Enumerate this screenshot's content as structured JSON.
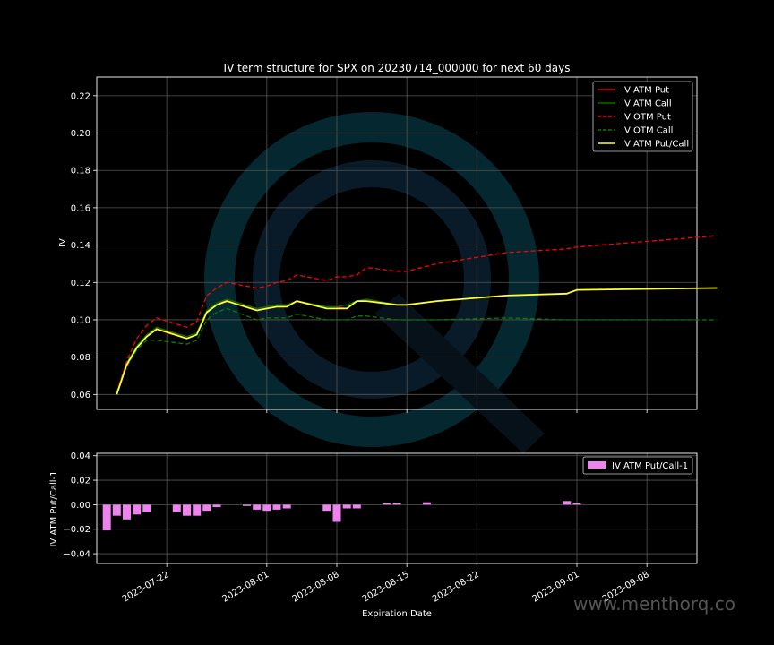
{
  "chart_data": [
    {
      "type": "line",
      "title": "IV term structure for SPX on 20230714_000000 for next 60 days",
      "xlabel": "",
      "ylabel": "IV",
      "ylim": [
        0.052,
        0.23
      ],
      "yticks": [
        0.06,
        0.08,
        0.1,
        0.12,
        0.14,
        0.16,
        0.18,
        0.2,
        0.22
      ],
      "x_range": [
        "2023-07-15",
        "2023-09-13"
      ],
      "grid": true,
      "legend_position": "top-right",
      "series": [
        {
          "name": "IV ATM Put",
          "color": "#e00000",
          "style": "solid",
          "points": [
            [
              "2023-07-17",
              0.061
            ],
            [
              "2023-07-18",
              0.076
            ],
            [
              "2023-07-19",
              0.085
            ],
            [
              "2023-07-20",
              0.091
            ],
            [
              "2023-07-21",
              0.096
            ],
            [
              "2023-07-24",
              0.09
            ],
            [
              "2023-07-25",
              0.092
            ],
            [
              "2023-07-26",
              0.104
            ],
            [
              "2023-07-27",
              0.108
            ],
            [
              "2023-07-28",
              0.111
            ],
            [
              "2023-07-31",
              0.106
            ],
            [
              "2023-08-01",
              0.107
            ],
            [
              "2023-08-02",
              0.108
            ],
            [
              "2023-08-03",
              0.108
            ],
            [
              "2023-08-04",
              0.11
            ],
            [
              "2023-08-07",
              0.107
            ],
            [
              "2023-08-08",
              0.107
            ],
            [
              "2023-08-09",
              0.106
            ],
            [
              "2023-08-10",
              0.11
            ],
            [
              "2023-08-11",
              0.111
            ],
            [
              "2023-08-14",
              0.108
            ],
            [
              "2023-08-15",
              0.108
            ],
            [
              "2023-08-18",
              0.11
            ],
            [
              "2023-08-25",
              0.113
            ],
            [
              "2023-08-31",
              0.114
            ],
            [
              "2023-09-01",
              0.116
            ],
            [
              "2023-09-15",
              0.117
            ]
          ]
        },
        {
          "name": "IV ATM Call",
          "color": "#007000",
          "style": "solid",
          "points": [
            [
              "2023-07-17",
              0.061
            ],
            [
              "2023-07-18",
              0.077
            ],
            [
              "2023-07-19",
              0.086
            ],
            [
              "2023-07-20",
              0.092
            ],
            [
              "2023-07-21",
              0.096
            ],
            [
              "2023-07-24",
              0.091
            ],
            [
              "2023-07-25",
              0.093
            ],
            [
              "2023-07-26",
              0.105
            ],
            [
              "2023-07-27",
              0.109
            ],
            [
              "2023-07-28",
              0.111
            ],
            [
              "2023-07-31",
              0.106
            ],
            [
              "2023-08-01",
              0.107
            ],
            [
              "2023-08-02",
              0.108
            ],
            [
              "2023-08-03",
              0.108
            ],
            [
              "2023-08-04",
              0.11
            ],
            [
              "2023-08-07",
              0.107
            ],
            [
              "2023-08-08",
              0.107
            ],
            [
              "2023-08-09",
              0.108
            ],
            [
              "2023-08-10",
              0.11
            ],
            [
              "2023-08-11",
              0.111
            ],
            [
              "2023-08-14",
              0.108
            ],
            [
              "2023-08-15",
              0.108
            ],
            [
              "2023-08-18",
              0.11
            ],
            [
              "2023-08-25",
              0.113
            ],
            [
              "2023-08-31",
              0.114
            ],
            [
              "2023-09-01",
              0.116
            ],
            [
              "2023-09-15",
              0.117
            ]
          ]
        },
        {
          "name": "IV OTM Put",
          "color": "#ff0000",
          "style": "dashed",
          "points": [
            [
              "2023-07-17",
              0.061
            ],
            [
              "2023-07-18",
              0.078
            ],
            [
              "2023-07-19",
              0.09
            ],
            [
              "2023-07-20",
              0.097
            ],
            [
              "2023-07-21",
              0.101
            ],
            [
              "2023-07-24",
              0.096
            ],
            [
              "2023-07-25",
              0.099
            ],
            [
              "2023-07-26",
              0.113
            ],
            [
              "2023-07-27",
              0.117
            ],
            [
              "2023-07-28",
              0.12
            ],
            [
              "2023-07-31",
              0.117
            ],
            [
              "2023-08-01",
              0.118
            ],
            [
              "2023-08-02",
              0.12
            ],
            [
              "2023-08-03",
              0.121
            ],
            [
              "2023-08-04",
              0.124
            ],
            [
              "2023-08-07",
              0.121
            ],
            [
              "2023-08-08",
              0.123
            ],
            [
              "2023-08-09",
              0.123
            ],
            [
              "2023-08-10",
              0.124
            ],
            [
              "2023-08-11",
              0.128
            ],
            [
              "2023-08-14",
              0.126
            ],
            [
              "2023-08-15",
              0.126
            ],
            [
              "2023-08-18",
              0.13
            ],
            [
              "2023-08-25",
              0.136
            ],
            [
              "2023-08-31",
              0.138
            ],
            [
              "2023-09-01",
              0.139
            ],
            [
              "2023-09-15",
              0.145
            ]
          ]
        },
        {
          "name": "IV OTM Call",
          "color": "#008000",
          "style": "dashed",
          "points": [
            [
              "2023-07-17",
              0.061
            ],
            [
              "2023-07-18",
              0.075
            ],
            [
              "2023-07-19",
              0.084
            ],
            [
              "2023-07-20",
              0.089
            ],
            [
              "2023-07-21",
              0.089
            ],
            [
              "2023-07-24",
              0.087
            ],
            [
              "2023-07-25",
              0.089
            ],
            [
              "2023-07-26",
              0.1
            ],
            [
              "2023-07-27",
              0.104
            ],
            [
              "2023-07-28",
              0.106
            ],
            [
              "2023-07-31",
              0.1
            ],
            [
              "2023-08-01",
              0.101
            ],
            [
              "2023-08-02",
              0.101
            ],
            [
              "2023-08-03",
              0.101
            ],
            [
              "2023-08-04",
              0.103
            ],
            [
              "2023-08-07",
              0.1
            ],
            [
              "2023-08-08",
              0.1
            ],
            [
              "2023-08-09",
              0.1
            ],
            [
              "2023-08-10",
              0.102
            ],
            [
              "2023-08-11",
              0.102
            ],
            [
              "2023-08-14",
              0.1
            ],
            [
              "2023-08-15",
              0.1
            ],
            [
              "2023-08-18",
              0.1
            ],
            [
              "2023-08-25",
              0.101
            ],
            [
              "2023-08-31",
              0.1
            ],
            [
              "2023-09-01",
              0.1
            ],
            [
              "2023-09-15",
              0.1
            ]
          ]
        },
        {
          "name": "IV ATM Put/Call",
          "color": "#ffff33",
          "style": "solid",
          "points": [
            [
              "2023-07-17",
              0.06
            ],
            [
              "2023-07-18",
              0.076
            ],
            [
              "2023-07-19",
              0.085
            ],
            [
              "2023-07-20",
              0.091
            ],
            [
              "2023-07-21",
              0.095
            ],
            [
              "2023-07-24",
              0.09
            ],
            [
              "2023-07-25",
              0.092
            ],
            [
              "2023-07-26",
              0.104
            ],
            [
              "2023-07-27",
              0.108
            ],
            [
              "2023-07-28",
              0.11
            ],
            [
              "2023-07-31",
              0.105
            ],
            [
              "2023-08-01",
              0.106
            ],
            [
              "2023-08-02",
              0.107
            ],
            [
              "2023-08-03",
              0.107
            ],
            [
              "2023-08-04",
              0.11
            ],
            [
              "2023-08-07",
              0.106
            ],
            [
              "2023-08-08",
              0.106
            ],
            [
              "2023-08-09",
              0.106
            ],
            [
              "2023-08-10",
              0.11
            ],
            [
              "2023-08-11",
              0.11
            ],
            [
              "2023-08-14",
              0.108
            ],
            [
              "2023-08-15",
              0.108
            ],
            [
              "2023-08-18",
              0.11
            ],
            [
              "2023-08-25",
              0.113
            ],
            [
              "2023-08-31",
              0.114
            ],
            [
              "2023-09-01",
              0.116
            ],
            [
              "2023-09-15",
              0.117
            ]
          ]
        }
      ]
    },
    {
      "type": "bar",
      "xlabel": "Expiration Date",
      "ylabel": "IV ATM Put/Call-1",
      "ylim": [
        -0.048,
        0.042
      ],
      "yticks": [
        -0.04,
        -0.02,
        0.0,
        0.02,
        0.04
      ],
      "ytick_labels": [
        "−0.04",
        "−0.02",
        "0.00",
        "0.02",
        "0.04"
      ],
      "x_range": [
        "2023-07-15",
        "2023-09-13"
      ],
      "xticks": [
        "2023-07-22",
        "2023-08-01",
        "2023-08-08",
        "2023-08-15",
        "2023-08-22",
        "2023-09-01",
        "2023-09-08"
      ],
      "grid": true,
      "legend_position": "top-right",
      "series": [
        {
          "name": "IV ATM Put/Call-1",
          "color": "#ee82ee",
          "points": [
            [
              "2023-07-16",
              -0.021
            ],
            [
              "2023-07-17",
              -0.009
            ],
            [
              "2023-07-18",
              -0.012
            ],
            [
              "2023-07-19",
              -0.008
            ],
            [
              "2023-07-20",
              -0.006
            ],
            [
              "2023-07-23",
              -0.006
            ],
            [
              "2023-07-24",
              -0.009
            ],
            [
              "2023-07-25",
              -0.009
            ],
            [
              "2023-07-26",
              -0.005
            ],
            [
              "2023-07-27",
              -0.002
            ],
            [
              "2023-07-30",
              -0.001
            ],
            [
              "2023-07-31",
              -0.004
            ],
            [
              "2023-08-01",
              -0.005
            ],
            [
              "2023-08-02",
              -0.004
            ],
            [
              "2023-08-03",
              -0.003
            ],
            [
              "2023-08-07",
              -0.005
            ],
            [
              "2023-08-08",
              -0.014
            ],
            [
              "2023-08-09",
              -0.003
            ],
            [
              "2023-08-10",
              -0.003
            ],
            [
              "2023-08-13",
              0.001
            ],
            [
              "2023-08-14",
              0.001
            ],
            [
              "2023-08-17",
              0.002
            ],
            [
              "2023-08-31",
              0.003
            ],
            [
              "2023-09-01",
              0.001
            ]
          ]
        }
      ]
    }
  ],
  "watermark": "www.menthorq.co"
}
